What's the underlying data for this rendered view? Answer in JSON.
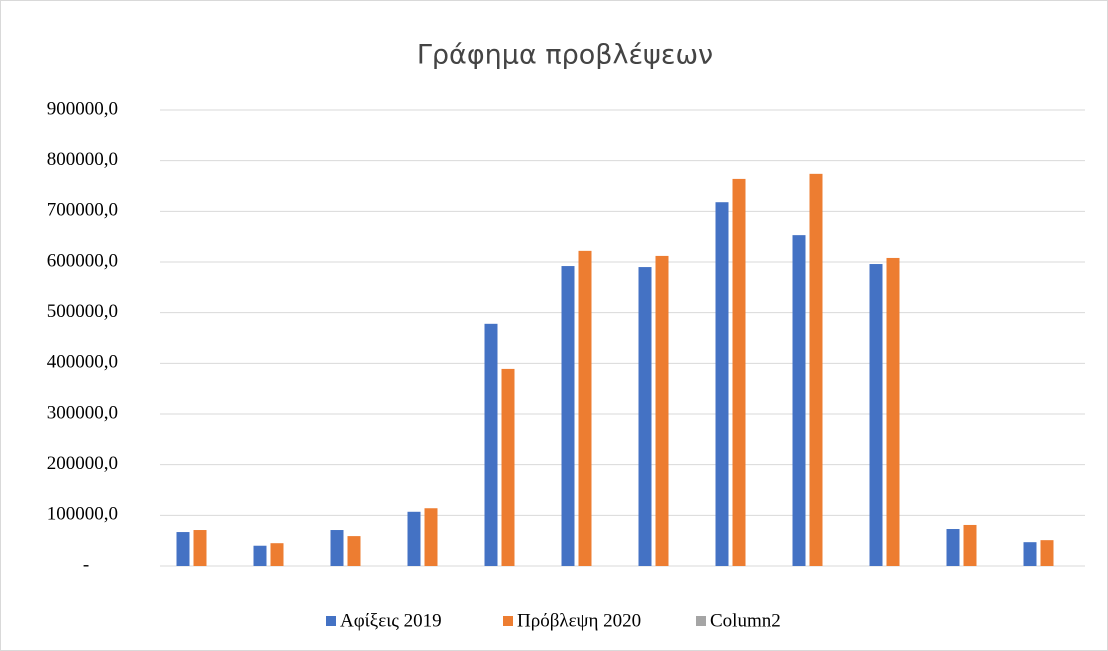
{
  "chart_data": {
    "type": "bar",
    "title": "Γράφημα προβλέψεων",
    "categories": [
      null,
      null,
      null,
      null,
      null,
      null,
      null,
      null,
      null,
      null,
      null,
      null
    ],
    "series": [
      {
        "name": "Αφίξεις 2019",
        "color": "#4472c4",
        "values": [
          67000,
          40000,
          71000,
          107000,
          478000,
          592000,
          590000,
          718000,
          653000,
          596000,
          73000,
          47000
        ]
      },
      {
        "name": "Πρόβλεψη 2020",
        "color": "#ed7d31",
        "values": [
          71000,
          45000,
          59000,
          114000,
          389000,
          622000,
          612000,
          764000,
          774000,
          608000,
          81000,
          51000
        ]
      },
      {
        "name": "Column2",
        "color": "#a5a5a5",
        "values": [
          null,
          null,
          null,
          null,
          null,
          null,
          null,
          null,
          null,
          null,
          null,
          null
        ]
      }
    ],
    "ylim": [
      0,
      900000
    ],
    "yticks": [
      {
        "value": 0,
        "label": "-"
      },
      {
        "value": 100000,
        "label": "100000,0"
      },
      {
        "value": 200000,
        "label": "200000,0"
      },
      {
        "value": 300000,
        "label": "300000,0"
      },
      {
        "value": 400000,
        "label": "400000,0"
      },
      {
        "value": 500000,
        "label": "500000,0"
      },
      {
        "value": 600000,
        "label": "600000,0"
      },
      {
        "value": 700000,
        "label": "700000,0"
      },
      {
        "value": 800000,
        "label": "800000,0"
      },
      {
        "value": 900000,
        "label": "900000,0"
      }
    ],
    "grid": true,
    "legend": "bottom"
  }
}
